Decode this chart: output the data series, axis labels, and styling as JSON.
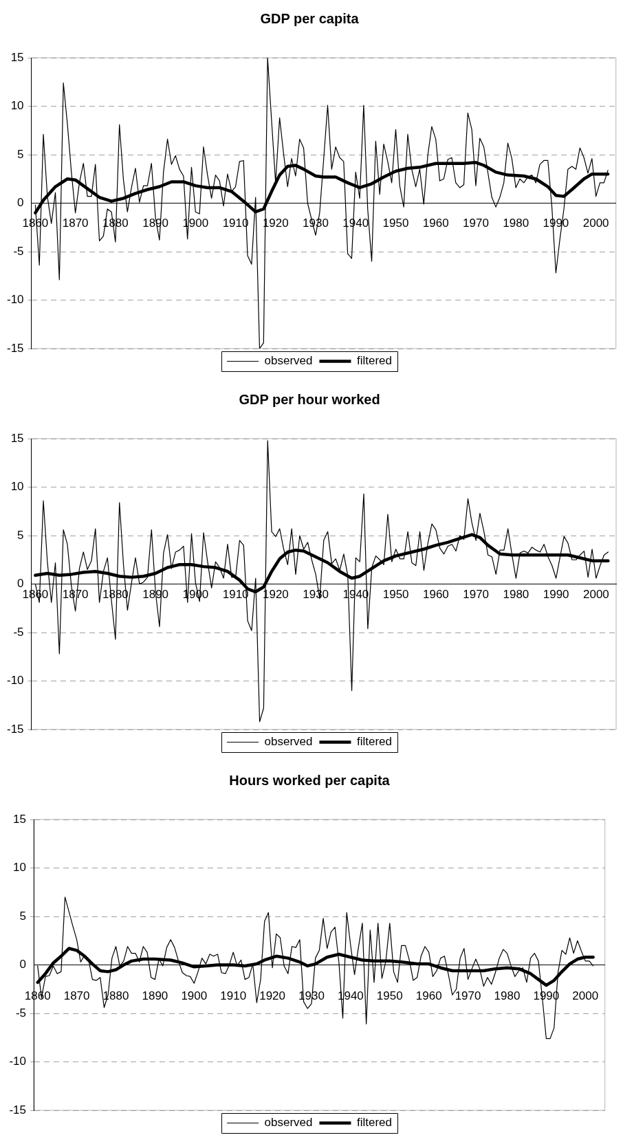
{
  "chart_data": [
    {
      "type": "line",
      "title": "GDP per capita",
      "legend": "bottom",
      "grid": "y",
      "marker": "none",
      "line_style": "solid",
      "xlim": [
        1859,
        2005
      ],
      "xticks": [
        1860,
        1870,
        1880,
        1890,
        1900,
        1910,
        1920,
        1930,
        1940,
        1950,
        1960,
        1970,
        1980,
        1990,
        2000
      ],
      "ylim": [
        -15,
        15
      ],
      "yticks": [
        -15,
        -10,
        -5,
        0,
        5,
        10,
        15
      ],
      "x": [
        1860,
        1861,
        1862,
        1863,
        1864,
        1865,
        1866,
        1867,
        1868,
        1869,
        1870,
        1871,
        1872,
        1873,
        1874,
        1875,
        1876,
        1877,
        1878,
        1879,
        1880,
        1881,
        1882,
        1883,
        1884,
        1885,
        1886,
        1887,
        1888,
        1889,
        1890,
        1891,
        1892,
        1893,
        1894,
        1895,
        1896,
        1897,
        1898,
        1899,
        1900,
        1901,
        1902,
        1903,
        1904,
        1905,
        1906,
        1907,
        1908,
        1909,
        1910,
        1911,
        1912,
        1913,
        1914,
        1915,
        1916,
        1917,
        1918,
        1919,
        1920,
        1921,
        1922,
        1923,
        1924,
        1925,
        1926,
        1927,
        1928,
        1929,
        1930,
        1931,
        1932,
        1933,
        1934,
        1935,
        1936,
        1937,
        1938,
        1939,
        1940,
        1941,
        1942,
        1943,
        1944,
        1945,
        1946,
        1947,
        1948,
        1949,
        1950,
        1951,
        1952,
        1953,
        1954,
        1955,
        1956,
        1957,
        1958,
        1959,
        1960,
        1961,
        1962,
        1963,
        1964,
        1965,
        1966,
        1967,
        1968,
        1969,
        1970,
        1971,
        1972,
        1973,
        1974,
        1975,
        1976,
        1977,
        1978,
        1979,
        1980,
        1981,
        1982,
        1983,
        1984,
        1985,
        1986,
        1987,
        1988,
        1989,
        1990,
        1991,
        1992,
        1993,
        1994,
        1995,
        1996,
        1997,
        1998,
        1999,
        2000,
        2001,
        2002,
        2003
      ],
      "series": [
        {
          "name": "observed",
          "color": "#000000",
          "values": [
            -0.2,
            -6.4,
            7.1,
            0.7,
            -2.1,
            1.1,
            -7.9,
            12.4,
            8.2,
            3.2,
            -1.0,
            2.1,
            4.1,
            0.7,
            0.7,
            4.0,
            -3.9,
            -3.4,
            -0.6,
            -0.9,
            -4.0,
            8.1,
            2.4,
            -0.9,
            1.6,
            3.6,
            0.1,
            1.8,
            1.8,
            4.1,
            -1.5,
            -3.8,
            3.2,
            6.6,
            4.0,
            4.9,
            3.5,
            2.8,
            -3.7,
            3.7,
            -0.9,
            -1.1,
            5.8,
            2.9,
            0.5,
            2.9,
            2.3,
            -0.3,
            3.0,
            1.2,
            1.7,
            4.3,
            4.4,
            -5.4,
            -6.3,
            0.6,
            -15,
            -14.4,
            15,
            8.5,
            2.1,
            8.8,
            5.1,
            1.7,
            4.6,
            2.8,
            6.6,
            5.7,
            0,
            -1.7,
            -3.3,
            -1.0,
            4.5,
            10.1,
            3.5,
            5.8,
            4.7,
            4.3,
            -5.2,
            -5.7,
            3.2,
            0.5,
            10.1,
            -0.6,
            -6.0,
            6.4,
            0.9,
            6.1,
            4.3,
            2.1,
            7.6,
            1.8,
            -0.4,
            7.1,
            3.5,
            1.7,
            3.5,
            -0.1,
            4.9,
            7.9,
            6.6,
            2.3,
            2.5,
            4.5,
            4.7,
            2.1,
            1.6,
            1.9,
            9.3,
            7.6,
            1.8,
            6.7,
            5.8,
            3.2,
            0.6,
            -0.4,
            0.6,
            2.1,
            6.2,
            4.6,
            1.6,
            2.5,
            2.1,
            2.7,
            2.9,
            2.1,
            4.0,
            4.4,
            4.4,
            -0.4,
            -7.2,
            -3.7,
            -0.6,
            3.5,
            3.8,
            3.5,
            5.7,
            4.7,
            3.1,
            4.6,
            0.7,
            2.1,
            2.1,
            3.4
          ]
        },
        {
          "name": "filtered",
          "color": "#000000",
          "x": [
            1860,
            1862,
            1865,
            1868,
            1870,
            1873,
            1876,
            1879,
            1882,
            1885,
            1888,
            1891,
            1894,
            1897,
            1900,
            1903,
            1906,
            1909,
            1912,
            1915,
            1917,
            1919,
            1921,
            1923,
            1925,
            1927,
            1930,
            1932,
            1935,
            1938,
            1941,
            1944,
            1947,
            1950,
            1953,
            1956,
            1960,
            1964,
            1967,
            1970,
            1972,
            1975,
            1978,
            1982,
            1985,
            1988,
            1990,
            1992,
            1994,
            1997,
            1999,
            2003
          ],
          "values": [
            -1.0,
            0.3,
            1.7,
            2.5,
            2.4,
            1.5,
            0.6,
            0.2,
            0.5,
            1.0,
            1.4,
            1.7,
            2.2,
            2.2,
            1.8,
            1.6,
            1.6,
            1.2,
            0.2,
            -0.9,
            -0.6,
            1.2,
            2.9,
            3.8,
            3.9,
            3.5,
            2.8,
            2.7,
            2.7,
            2.1,
            1.6,
            2.0,
            2.7,
            3.3,
            3.6,
            3.7,
            4.1,
            4.1,
            4.1,
            4.2,
            3.9,
            3.2,
            2.9,
            2.8,
            2.5,
            1.7,
            0.8,
            0.7,
            1.4,
            2.5,
            3.0,
            3.0
          ]
        }
      ]
    },
    {
      "type": "line",
      "title": "GDP per hour worked",
      "legend": "bottom",
      "grid": "y",
      "marker": "none",
      "line_style": "solid",
      "xlim": [
        1859,
        2005
      ],
      "xticks": [
        1860,
        1870,
        1880,
        1890,
        1900,
        1910,
        1920,
        1930,
        1940,
        1950,
        1960,
        1970,
        1980,
        1990,
        2000
      ],
      "ylim": [
        -15,
        15
      ],
      "yticks": [
        -15,
        -10,
        -5,
        0,
        5,
        10,
        15
      ],
      "x": [
        1860,
        1861,
        1862,
        1863,
        1864,
        1865,
        1866,
        1867,
        1868,
        1869,
        1870,
        1871,
        1872,
        1873,
        1874,
        1875,
        1876,
        1877,
        1878,
        1879,
        1880,
        1881,
        1882,
        1883,
        1884,
        1885,
        1886,
        1887,
        1888,
        1889,
        1890,
        1891,
        1892,
        1893,
        1894,
        1895,
        1896,
        1897,
        1898,
        1899,
        1900,
        1901,
        1902,
        1903,
        1904,
        1905,
        1906,
        1907,
        1908,
        1909,
        1910,
        1911,
        1912,
        1913,
        1914,
        1915,
        1916,
        1917,
        1918,
        1919,
        1920,
        1921,
        1922,
        1923,
        1924,
        1925,
        1926,
        1927,
        1928,
        1929,
        1930,
        1931,
        1932,
        1933,
        1934,
        1935,
        1936,
        1937,
        1938,
        1939,
        1940,
        1941,
        1942,
        1943,
        1944,
        1945,
        1946,
        1947,
        1948,
        1949,
        1950,
        1951,
        1952,
        1953,
        1954,
        1955,
        1956,
        1957,
        1958,
        1959,
        1960,
        1961,
        1962,
        1963,
        1964,
        1965,
        1966,
        1967,
        1968,
        1969,
        1970,
        1971,
        1972,
        1973,
        1974,
        1975,
        1976,
        1977,
        1978,
        1979,
        1980,
        1981,
        1982,
        1983,
        1984,
        1985,
        1986,
        1987,
        1988,
        1989,
        1990,
        1991,
        1992,
        1993,
        1994,
        1995,
        1996,
        1997,
        1998,
        1999,
        2000,
        2001,
        2002,
        2003
      ],
      "series": [
        {
          "name": "observed",
          "color": "#000000",
          "values": [
            0.0,
            -1.9,
            8.6,
            2.3,
            -1.9,
            2.2,
            -7.2,
            5.6,
            4.1,
            -0.2,
            -2.8,
            1.6,
            3.3,
            1.5,
            2.4,
            5.7,
            -1.9,
            1.3,
            2.7,
            -1.7,
            -5.7,
            8.4,
            2.0,
            -2.7,
            0.1,
            2.7,
            0.0,
            0.2,
            0.7,
            5.6,
            -0.8,
            -4.4,
            3.2,
            5.1,
            1.6,
            3.3,
            3.5,
            3.9,
            -1.9,
            5.2,
            0.1,
            -1.8,
            5.3,
            2.3,
            -0.4,
            2.3,
            1.7,
            0.6,
            4.1,
            0.7,
            0.7,
            4.5,
            4.0,
            -3.8,
            -4.8,
            0.6,
            -14.2,
            -12.8,
            14.8,
            5.4,
            4.9,
            5.7,
            3.6,
            2.0,
            5.7,
            1.0,
            5.0,
            3.6,
            4.3,
            2.5,
            1.0,
            -1.5,
            4.5,
            5.4,
            2.1,
            2.6,
            1.4,
            3.1,
            0.9,
            -11.0,
            2.7,
            2.3,
            9.3,
            -4.6,
            1.7,
            2.9,
            2.5,
            2.0,
            7.2,
            2.3,
            3.6,
            2.6,
            2.6,
            5.4,
            2.2,
            1.9,
            5.4,
            1.4,
            4.2,
            6.2,
            5.6,
            3.7,
            3.1,
            3.9,
            4.1,
            3.4,
            5.0,
            4.6,
            8.8,
            6.3,
            4.5,
            7.3,
            5.4,
            3.0,
            2.8,
            1.0,
            3.5,
            3.5,
            5.7,
            3.0,
            0.6,
            3.2,
            3.4,
            3.2,
            3.8,
            3.5,
            3.3,
            4.1,
            2.8,
            1.9,
            0.6,
            2.8,
            4.9,
            4.2,
            2.5,
            2.5,
            3.0,
            3.4,
            0.7,
            3.6,
            0.6,
            1.9,
            3.0,
            3.3
          ]
        },
        {
          "name": "filtered",
          "color": "#000000",
          "x": [
            1860,
            1863,
            1866,
            1869,
            1872,
            1875,
            1878,
            1881,
            1884,
            1887,
            1890,
            1893,
            1896,
            1899,
            1902,
            1905,
            1908,
            1911,
            1913,
            1915,
            1917,
            1919,
            1921,
            1923,
            1925,
            1927,
            1930,
            1933,
            1936,
            1939,
            1941,
            1944,
            1947,
            1950,
            1954,
            1957,
            1960,
            1963,
            1966,
            1969,
            1971,
            1973,
            1976,
            1979,
            1985,
            1993,
            1995,
            1999,
            2003
          ],
          "values": [
            0.9,
            1.1,
            0.9,
            1.0,
            1.2,
            1.3,
            1.1,
            0.8,
            0.7,
            0.8,
            1.1,
            1.7,
            2.0,
            2.0,
            1.8,
            1.7,
            1.3,
            0.4,
            -0.5,
            -0.8,
            -0.3,
            1.3,
            2.6,
            3.3,
            3.5,
            3.4,
            2.8,
            2.2,
            1.3,
            0.6,
            0.8,
            1.6,
            2.4,
            2.9,
            3.3,
            3.6,
            4.0,
            4.3,
            4.7,
            5.1,
            4.8,
            4.0,
            3.1,
            3.0,
            3.0,
            3.0,
            2.8,
            2.4,
            2.4
          ]
        }
      ]
    },
    {
      "type": "line",
      "title": "Hours worked per capita",
      "legend": "bottom",
      "grid": "y",
      "marker": "none",
      "line_style": "solid",
      "xlim": [
        1859,
        2005
      ],
      "xticks": [
        1860,
        1870,
        1880,
        1890,
        1900,
        1910,
        1920,
        1930,
        1940,
        1950,
        1960,
        1970,
        1980,
        1990,
        2000
      ],
      "ylim": [
        -15,
        15
      ],
      "yticks": [
        -15,
        -10,
        -5,
        0,
        5,
        10,
        15
      ],
      "x": [
        1860,
        1861,
        1862,
        1863,
        1864,
        1865,
        1866,
        1867,
        1868,
        1869,
        1870,
        1871,
        1872,
        1873,
        1874,
        1875,
        1876,
        1877,
        1878,
        1879,
        1880,
        1881,
        1882,
        1883,
        1884,
        1885,
        1886,
        1887,
        1888,
        1889,
        1890,
        1891,
        1892,
        1893,
        1894,
        1895,
        1896,
        1897,
        1898,
        1899,
        1900,
        1901,
        1902,
        1903,
        1904,
        1905,
        1906,
        1907,
        1908,
        1909,
        1910,
        1911,
        1912,
        1913,
        1914,
        1915,
        1916,
        1917,
        1918,
        1919,
        1920,
        1921,
        1922,
        1923,
        1924,
        1925,
        1926,
        1927,
        1928,
        1929,
        1930,
        1931,
        1932,
        1933,
        1934,
        1935,
        1936,
        1937,
        1938,
        1939,
        1940,
        1941,
        1942,
        1943,
        1944,
        1945,
        1946,
        1947,
        1948,
        1949,
        1950,
        1951,
        1952,
        1953,
        1954,
        1955,
        1956,
        1957,
        1958,
        1959,
        1960,
        1961,
        1962,
        1963,
        1964,
        1965,
        1966,
        1967,
        1968,
        1969,
        1970,
        1971,
        1972,
        1973,
        1974,
        1975,
        1976,
        1977,
        1978,
        1979,
        1980,
        1981,
        1982,
        1983,
        1984,
        1985,
        1986,
        1987,
        1988,
        1989,
        1990,
        1991,
        1992,
        1993,
        1994,
        1995,
        1996,
        1997,
        1998,
        1999,
        2000,
        2001,
        2002
      ],
      "series": [
        {
          "name": "observed",
          "color": "#000000",
          "values": [
            -0.1,
            -3.4,
            -1.2,
            -1.1,
            -0.1,
            -0.9,
            -0.7,
            7.0,
            5.5,
            4.0,
            2.6,
            0.3,
            1.0,
            0.6,
            -1.5,
            -1.6,
            -1.3,
            -4.4,
            -3.1,
            0.7,
            1.9,
            -0.1,
            0.4,
            1.9,
            1.2,
            1.2,
            0.3,
            1.9,
            1.3,
            -1.3,
            -1.5,
            0.6,
            -0.1,
            1.8,
            2.6,
            1.8,
            0.4,
            -0.8,
            -1.1,
            -1.2,
            -1.9,
            -0.7,
            0.7,
            0.1,
            1.1,
            0.9,
            1.1,
            -0.8,
            -0.9,
            0.0,
            1.3,
            -0.1,
            0.5,
            -1.5,
            -1.3,
            0.1,
            -3.9,
            -1.5,
            4.5,
            5.4,
            -0.3,
            3.2,
            2.8,
            -0.1,
            -0.9,
            1.9,
            1.8,
            2.6,
            -3.8,
            -4.5,
            -4.0,
            0.7,
            1.5,
            4.8,
            1.7,
            3.4,
            3.9,
            0.3,
            -5.5,
            5.4,
            2.0,
            -1.0,
            1.8,
            4.3,
            -6.1,
            3.6,
            -1.8,
            4.3,
            -1.4,
            0.4,
            4.3,
            -0.7,
            -1.8,
            2.0,
            2.0,
            0.5,
            -1.6,
            -1.3,
            0.9,
            1.9,
            1.3,
            -1.2,
            -0.6,
            0.7,
            0.9,
            -1.0,
            -3.1,
            -2.5,
            0.7,
            1.7,
            -1.5,
            -0.4,
            0.6,
            -0.4,
            -2.2,
            -1.3,
            -2.0,
            -0.8,
            0.7,
            1.6,
            1.2,
            -0.1,
            -1.2,
            -0.6,
            -0.3,
            -1.8,
            0.7,
            1.2,
            0.4,
            -3.4,
            -7.6,
            -7.6,
            -6.5,
            -0.8,
            1.5,
            1.1,
            2.8,
            1.2,
            2.5,
            1.4,
            0.4,
            0.4,
            -0.1
          ]
        },
        {
          "name": "filtered",
          "color": "#000000",
          "x": [
            1860,
            1862,
            1864,
            1866,
            1868,
            1870,
            1872,
            1874,
            1876,
            1878,
            1880,
            1882,
            1884,
            1887,
            1890,
            1894,
            1897,
            1900,
            1903,
            1906,
            1910,
            1913,
            1916,
            1918,
            1921,
            1924,
            1927,
            1929,
            1931,
            1934,
            1937,
            1940,
            1943,
            1946,
            1950,
            1953,
            1957,
            1960,
            1963,
            1966,
            1970,
            1974,
            1977,
            1980,
            1983,
            1986,
            1988,
            1990,
            1992,
            1994,
            1996,
            1998,
            2000,
            2002
          ],
          "values": [
            -1.8,
            -0.9,
            0.2,
            0.9,
            1.7,
            1.5,
            0.9,
            0.1,
            -0.6,
            -0.7,
            -0.5,
            0.0,
            0.4,
            0.6,
            0.6,
            0.5,
            0.2,
            -0.2,
            -0.1,
            0.0,
            0.0,
            -0.1,
            0.1,
            0.5,
            0.9,
            0.7,
            0.3,
            -0.1,
            0.1,
            0.8,
            1.1,
            0.8,
            0.5,
            0.4,
            0.4,
            0.3,
            0.1,
            0.1,
            -0.3,
            -0.6,
            -0.6,
            -0.6,
            -0.4,
            -0.3,
            -0.4,
            -0.9,
            -1.5,
            -2.1,
            -1.6,
            -0.7,
            0.1,
            0.6,
            0.8,
            0.8
          ]
        }
      ]
    }
  ]
}
